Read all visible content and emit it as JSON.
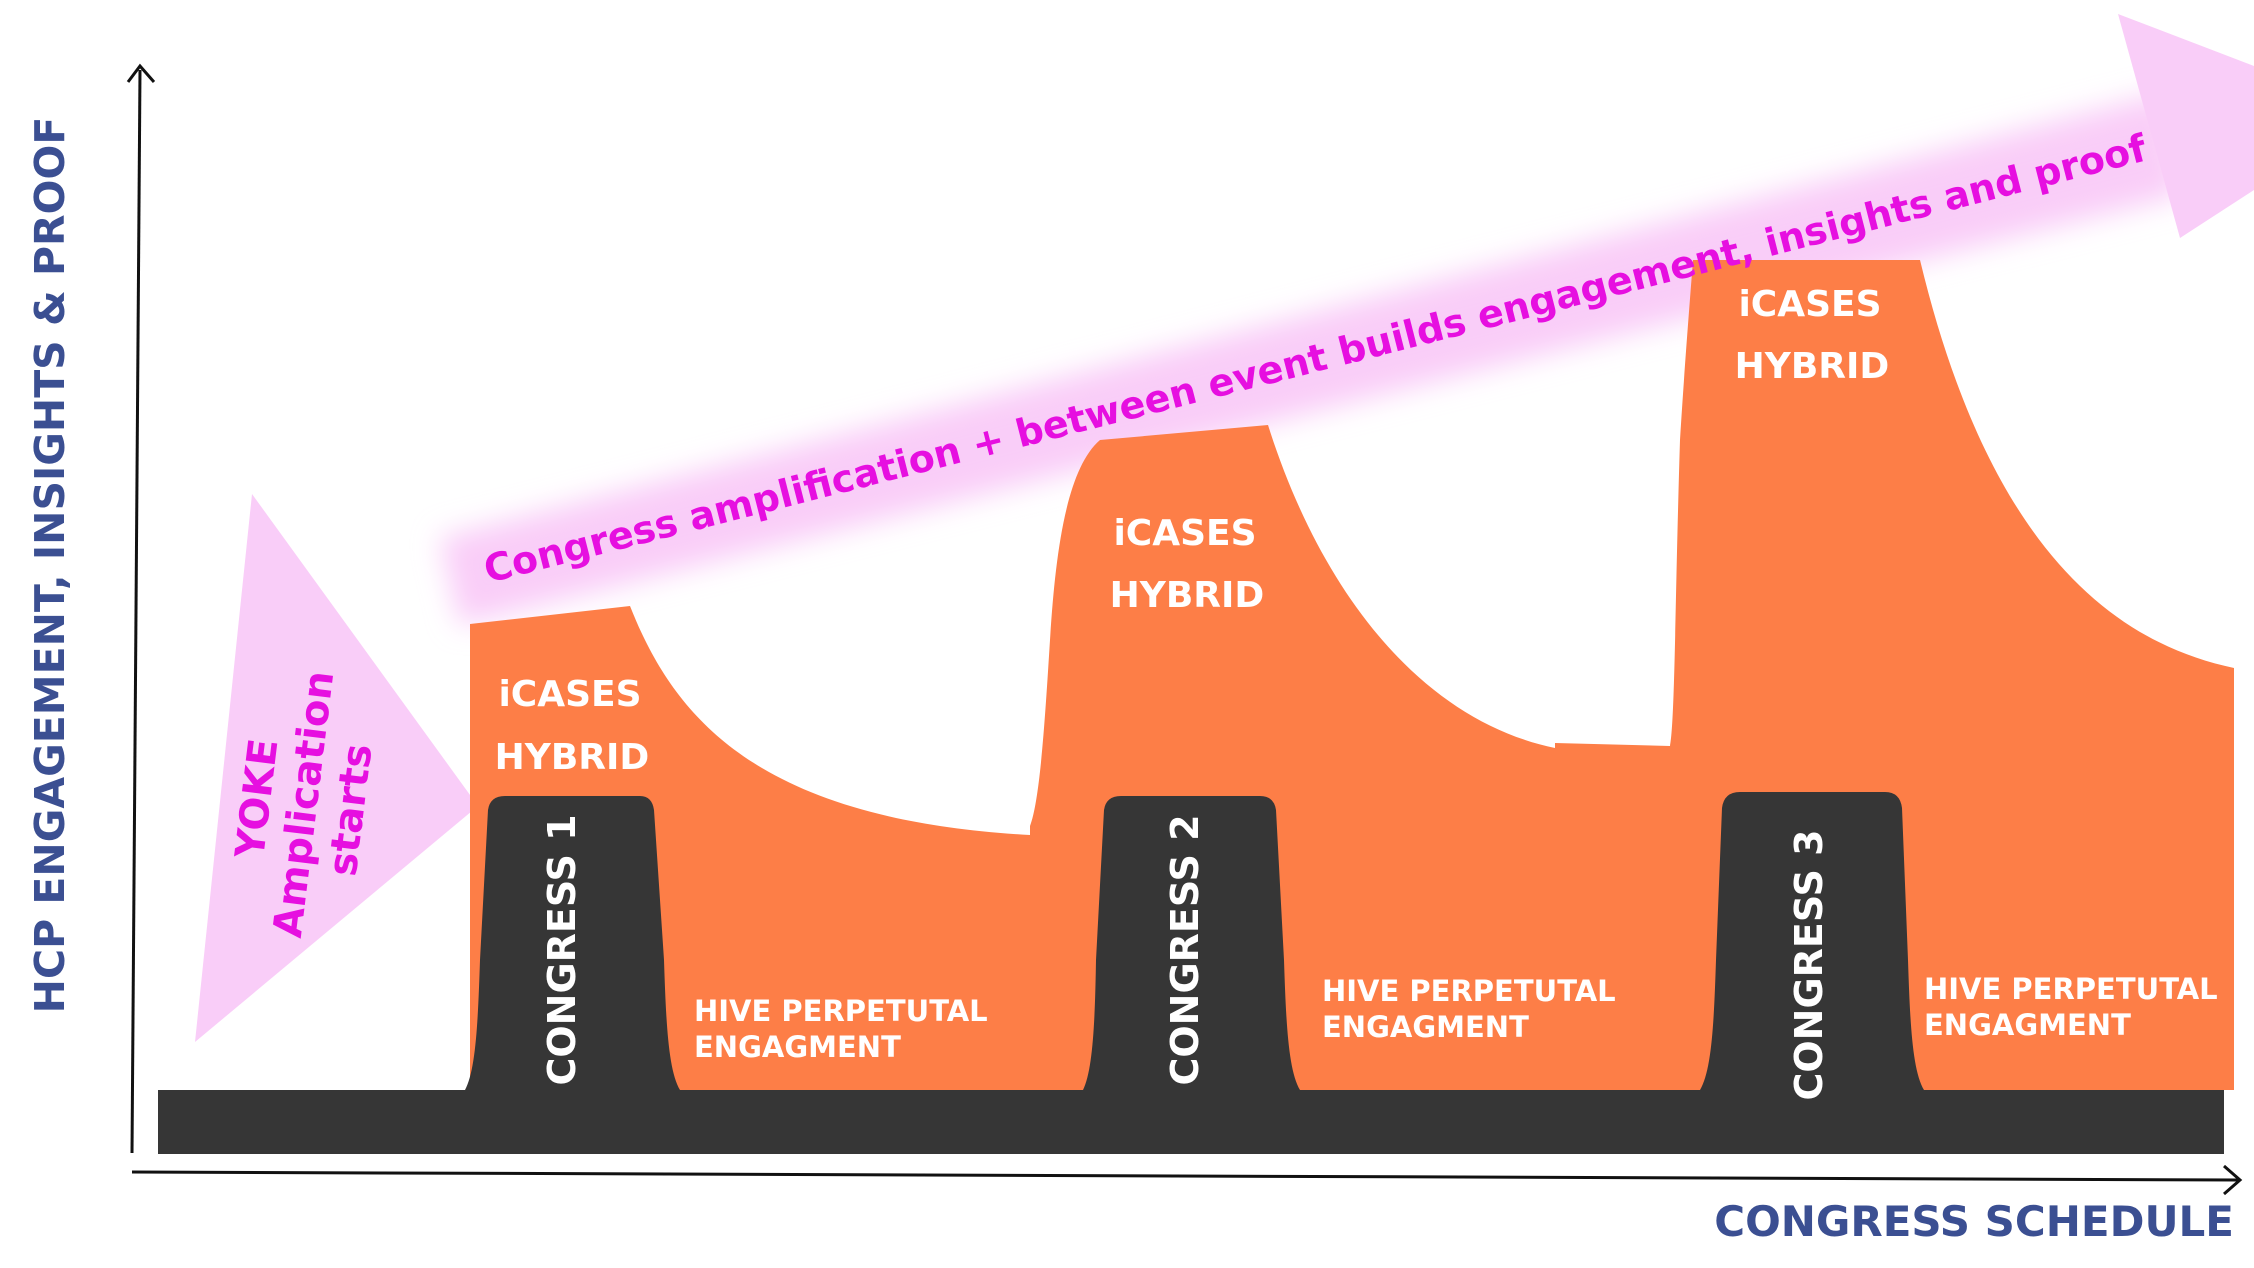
{
  "axes": {
    "y_label": "HCP ENGAGEMENT, INSIGHTS & PROOF",
    "x_label": "CONGRESS SCHEDULE"
  },
  "yoke": {
    "line1": "YOKE",
    "line2": "Amplication",
    "line3": "starts"
  },
  "banner": {
    "text": "Congress amplification + between event builds engagement, insights and proof"
  },
  "phases": [
    {
      "congress": "CONGRESS 1",
      "icases_line1": "iCASES",
      "icases_line2": "HYBRID",
      "hive_line1": "HIVE PERPETUTAL",
      "hive_line2": "ENGAGMENT"
    },
    {
      "congress": "CONGRESS 2",
      "icases_line1": "iCASES",
      "icases_line2": "HYBRID",
      "hive_line1": "HIVE PERPETUTAL",
      "hive_line2": "ENGAGMENT"
    },
    {
      "congress": "CONGRESS  3",
      "icases_line1": "iCASES",
      "icases_line2": "HYBRID",
      "hive_line1": "HIVE PERPETUTAL",
      "hive_line2": "ENGAGMENT"
    }
  ],
  "colors": {
    "orange": "#fd7e47",
    "dark": "#363636",
    "pink": "#f9cdf8",
    "magenta": "#e60fe0",
    "axis_text": "#3b4f92"
  }
}
